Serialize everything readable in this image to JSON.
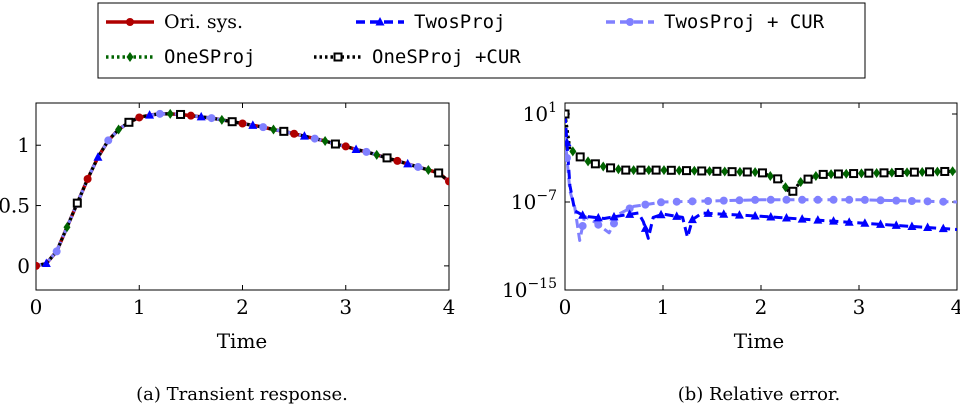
{
  "legend": {
    "placement": "top",
    "entries": [
      {
        "key": "ori",
        "label": "Ori. sys.",
        "font": "serif",
        "color": "#b00000",
        "dash": "solid",
        "marker": "circle"
      },
      {
        "key": "twos",
        "label": "TwosProj",
        "font": "mono",
        "color": "#0000ff",
        "dash": "dashed",
        "marker": "triangle"
      },
      {
        "key": "twoscur",
        "label": "TwosProj + CUR",
        "font": "mono",
        "color": "#8080ff",
        "dash": "dashed",
        "marker": "circle"
      },
      {
        "key": "ones",
        "label": "OneSProj",
        "font": "mono",
        "color": "#006400",
        "dash": "dotted",
        "marker": "diamond"
      },
      {
        "key": "onescur",
        "label": "OneSProj +CUR",
        "font": "mono",
        "color": "#000000",
        "dash": "dotted",
        "marker": "square"
      }
    ]
  },
  "chart_data": [
    {
      "type": "line",
      "caption": "(a) Transient response.",
      "xlabel": "Time",
      "ylabel": "",
      "xlim": [
        0,
        4
      ],
      "ylim": [
        -0.2,
        1.35
      ],
      "xticks": [
        0,
        1,
        2,
        3,
        4
      ],
      "yticks": [
        0,
        0.5,
        1
      ],
      "ytick_labels": [
        "0",
        "0.5",
        "1"
      ],
      "grid": false,
      "x": [
        0,
        0.1,
        0.2,
        0.3,
        0.4,
        0.5,
        0.6,
        0.7,
        0.8,
        0.9,
        1.0,
        1.1,
        1.2,
        1.3,
        1.4,
        1.5,
        1.6,
        1.7,
        1.8,
        1.9,
        2.0,
        2.1,
        2.2,
        2.3,
        2.4,
        2.5,
        2.6,
        2.7,
        2.8,
        2.9,
        3.0,
        3.1,
        3.2,
        3.3,
        3.4,
        3.5,
        3.6,
        3.7,
        3.8,
        3.9,
        4.0
      ],
      "series": [
        {
          "name": "Ori. sys.",
          "values": [
            0,
            0.02,
            0.12,
            0.32,
            0.52,
            0.72,
            0.9,
            1.04,
            1.13,
            1.19,
            1.23,
            1.25,
            1.26,
            1.26,
            1.255,
            1.245,
            1.235,
            1.225,
            1.21,
            1.195,
            1.18,
            1.165,
            1.15,
            1.13,
            1.115,
            1.095,
            1.075,
            1.055,
            1.035,
            1.01,
            0.99,
            0.965,
            0.945,
            0.92,
            0.895,
            0.87,
            0.845,
            0.82,
            0.795,
            0.77,
            0.7
          ]
        }
      ]
    },
    {
      "type": "line",
      "caption": "(b) Relative error.",
      "xlabel": "Time",
      "ylabel": "",
      "yscale": "log",
      "xlim": [
        0,
        4
      ],
      "ylim_exponent": [
        -15,
        2
      ],
      "xticks": [
        0,
        1,
        2,
        3,
        4
      ],
      "yticks_exponent": [
        1,
        -7,
        -15
      ],
      "ytick_labels": [
        "10^1",
        "10^-7",
        "10^-15"
      ],
      "grid": false,
      "series": [
        {
          "name": "OneSProj",
          "x": [
            0,
            0.05,
            0.2,
            0.4,
            0.6,
            1.0,
            1.5,
            2.0,
            2.2,
            2.3,
            2.4,
            2.6,
            3.0,
            3.5,
            4.0
          ],
          "log10_values": [
            1,
            -2.2,
            -3.2,
            -3.8,
            -4.1,
            -4.1,
            -4.2,
            -4.3,
            -5.0,
            -6.3,
            -5.2,
            -4.5,
            -4.4,
            -4.3,
            -4.2
          ]
        },
        {
          "name": "OneSProj +CUR",
          "x": [
            0,
            0.05,
            0.2,
            0.4,
            0.6,
            1.0,
            1.5,
            2.0,
            2.2,
            2.3,
            2.4,
            2.6,
            3.0,
            3.5,
            4.0
          ],
          "log10_values": [
            1,
            -2.2,
            -3.2,
            -3.8,
            -4.1,
            -4.1,
            -4.2,
            -4.3,
            -5.0,
            -6.3,
            -5.2,
            -4.5,
            -4.4,
            -4.3,
            -4.2
          ]
        },
        {
          "name": "TwosProj + CUR",
          "x": [
            0,
            0.05,
            0.1,
            0.15,
            0.2,
            0.3,
            0.45,
            0.55,
            0.7,
            1.0,
            1.5,
            2.0,
            2.5,
            3.0,
            3.5,
            4.0
          ],
          "log10_values": [
            -1.0,
            -6.0,
            -7.5,
            -10.5,
            -8.3,
            -8.8,
            -9.8,
            -8.1,
            -7.4,
            -7.0,
            -6.9,
            -6.8,
            -6.8,
            -6.8,
            -6.9,
            -7.0
          ]
        },
        {
          "name": "TwosProj",
          "x": [
            0,
            0.05,
            0.1,
            0.2,
            0.4,
            0.6,
            0.75,
            0.8,
            0.85,
            0.9,
            1.0,
            1.2,
            1.25,
            1.3,
            1.4,
            1.6,
            2.0,
            2.5,
            3.0,
            3.5,
            4.0
          ],
          "log10_values": [
            1,
            -5.5,
            -7.8,
            -8.3,
            -8.5,
            -8.2,
            -8.0,
            -8.8,
            -10.3,
            -8.4,
            -8.1,
            -8.4,
            -10.2,
            -8.6,
            -8.0,
            -8.1,
            -8.3,
            -8.6,
            -8.9,
            -9.2,
            -9.5
          ]
        }
      ]
    }
  ]
}
